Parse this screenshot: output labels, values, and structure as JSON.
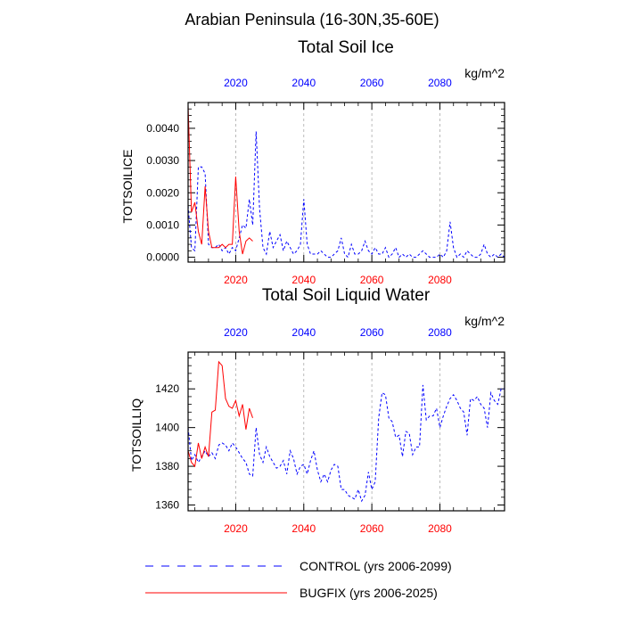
{
  "page": {
    "title": "Arabian Peninsula (16-30N,35-60E)",
    "colors": {
      "control": "#0000ff",
      "bugfix": "#ff0000",
      "grid": "#aaaaaa"
    }
  },
  "legend": {
    "control_label": "CONTROL (yrs 2006-2099)",
    "bugfix_label": "BUGFIX (yrs 2006-2025)"
  },
  "chart_data": [
    {
      "type": "line",
      "title": "Total Soil Ice",
      "units": "kg/m^2",
      "ylabel": "TOTSOILICE",
      "xlim": [
        2006,
        2099
      ],
      "ylim": [
        -0.00015,
        0.0048
      ],
      "yticks": [
        0.0,
        0.001,
        0.002,
        0.003,
        0.004
      ],
      "ytick_labels": [
        "0.0000",
        "0.0010",
        "0.0020",
        "0.0030",
        "0.0040"
      ],
      "xticks": [
        2020,
        2040,
        2060,
        2080
      ],
      "xtick_labels": [
        "2020",
        "2040",
        "2060",
        "2080"
      ],
      "series": [
        {
          "name": "CONTROL",
          "style": "dashed",
          "x": [
            2006,
            2007,
            2008,
            2009,
            2010,
            2011,
            2012,
            2013,
            2014,
            2015,
            2016,
            2017,
            2018,
            2019,
            2020,
            2021,
            2022,
            2023,
            2024,
            2025,
            2026,
            2027,
            2028,
            2029,
            2030,
            2031,
            2032,
            2033,
            2034,
            2035,
            2036,
            2037,
            2038,
            2039,
            2040,
            2041,
            2042,
            2043,
            2044,
            2045,
            2046,
            2047,
            2048,
            2049,
            2050,
            2051,
            2052,
            2053,
            2054,
            2055,
            2056,
            2057,
            2058,
            2059,
            2060,
            2061,
            2062,
            2063,
            2064,
            2065,
            2066,
            2067,
            2068,
            2069,
            2070,
            2071,
            2072,
            2073,
            2074,
            2075,
            2076,
            2077,
            2078,
            2079,
            2080,
            2081,
            2082,
            2083,
            2084,
            2085,
            2086,
            2087,
            2088,
            2089,
            2090,
            2091,
            2092,
            2093,
            2094,
            2095,
            2096,
            2097,
            2098,
            2099
          ],
          "values": [
            0.0016,
            0.0003,
            0.0002,
            0.0028,
            0.0028,
            0.0026,
            0.0004,
            0.0003,
            0.0003,
            0.0004,
            0.0002,
            0.0003,
            0.0001,
            0.0003,
            0.0002,
            0.0006,
            0.001,
            0.0009,
            0.0018,
            0.001,
            0.0039,
            0.0015,
            0.0003,
            0.0001,
            0.0008,
            0.0003,
            0.0005,
            0.0007,
            0.0002,
            0.0005,
            0.0003,
            0.0001,
            0.0002,
            0.0004,
            0.0018,
            0.0004,
            0.0001,
            0.0001,
            0.0001,
            0.0002,
            0.0001,
            0.0,
            0.0,
            0.0001,
            0.0002,
            0.0006,
            0.0001,
            0.0,
            0.0004,
            0.0001,
            0.0001,
            0.0002,
            0.0005,
            0.0002,
            0.0001,
            0.0003,
            0.0001,
            0.0001,
            0.0003,
            0.0,
            0.0001,
            0.0003,
            0.0,
            0.0001,
            0.0,
            0.0001,
            0.0,
            0.0,
            0.0001,
            0.0002,
            0.0001,
            0.0,
            0.0,
            0.0,
            0.0001,
            0.0,
            0.0002,
            0.0011,
            0.0003,
            0.0,
            0.0001,
            0.0,
            0.0002,
            0.0001,
            0.0,
            0.0,
            0.0001,
            0.0004,
            0.0001,
            0.0,
            0.0001,
            0.0,
            0.0001,
            0.0
          ]
        },
        {
          "name": "BUGFIX",
          "style": "solid",
          "x": [
            2006,
            2007,
            2008,
            2009,
            2010,
            2011,
            2012,
            2013,
            2014,
            2015,
            2016,
            2017,
            2018,
            2019,
            2020,
            2021,
            2022,
            2023,
            2024,
            2025
          ],
          "values": [
            0.0047,
            0.0014,
            0.0017,
            0.0008,
            0.0004,
            0.0022,
            0.0008,
            0.0003,
            0.0003,
            0.0003,
            0.0004,
            0.0003,
            0.0004,
            0.0004,
            0.0025,
            0.0008,
            0.0001,
            0.0005,
            0.0006,
            0.0005
          ]
        }
      ]
    },
    {
      "type": "line",
      "title": "Total Soil Liquid Water",
      "units": "kg/m^2",
      "ylabel": "TOTSOILLIQ",
      "xlim": [
        2006,
        2099
      ],
      "ylim": [
        1357,
        1439
      ],
      "yticks": [
        1360,
        1380,
        1400,
        1420
      ],
      "ytick_labels": [
        "1360",
        "1380",
        "1400",
        "1420"
      ],
      "xticks": [
        2020,
        2040,
        2060,
        2080
      ],
      "xtick_labels": [
        "2020",
        "2040",
        "2060",
        "2080"
      ],
      "series": [
        {
          "name": "CONTROL",
          "style": "dashed",
          "x": [
            2006,
            2007,
            2008,
            2009,
            2010,
            2011,
            2012,
            2013,
            2014,
            2015,
            2016,
            2017,
            2018,
            2019,
            2020,
            2021,
            2022,
            2023,
            2024,
            2025,
            2026,
            2027,
            2028,
            2029,
            2030,
            2031,
            2032,
            2033,
            2034,
            2035,
            2036,
            2037,
            2038,
            2039,
            2040,
            2041,
            2042,
            2043,
            2044,
            2045,
            2046,
            2047,
            2048,
            2049,
            2050,
            2051,
            2052,
            2053,
            2054,
            2055,
            2056,
            2057,
            2058,
            2059,
            2060,
            2061,
            2062,
            2063,
            2064,
            2065,
            2066,
            2067,
            2068,
            2069,
            2070,
            2071,
            2072,
            2073,
            2074,
            2075,
            2076,
            2077,
            2078,
            2079,
            2080,
            2081,
            2082,
            2083,
            2084,
            2085,
            2086,
            2087,
            2088,
            2089,
            2090,
            2091,
            2092,
            2093,
            2094,
            2095,
            2096,
            2097,
            2098,
            2099
          ],
          "values": [
            1400,
            1383,
            1386,
            1382,
            1385,
            1388,
            1385,
            1387,
            1384,
            1391,
            1392,
            1391,
            1388,
            1392,
            1390,
            1387,
            1384,
            1382,
            1376,
            1375,
            1400,
            1386,
            1382,
            1390,
            1385,
            1382,
            1379,
            1380,
            1383,
            1376,
            1388,
            1384,
            1376,
            1380,
            1381,
            1376,
            1383,
            1388,
            1378,
            1372,
            1376,
            1372,
            1378,
            1381,
            1380,
            1368,
            1368,
            1365,
            1364,
            1363,
            1368,
            1362,
            1365,
            1377,
            1368,
            1372,
            1405,
            1418,
            1417,
            1405,
            1403,
            1395,
            1396,
            1385,
            1398,
            1397,
            1386,
            1390,
            1390,
            1422,
            1404,
            1406,
            1406,
            1410,
            1400,
            1406,
            1411,
            1415,
            1417,
            1414,
            1410,
            1408,
            1396,
            1415,
            1414,
            1416,
            1412,
            1410,
            1400,
            1418,
            1414,
            1412,
            1420,
            1420
          ]
        },
        {
          "name": "BUGFIX",
          "style": "solid",
          "x": [
            2006,
            2007,
            2008,
            2009,
            2010,
            2011,
            2012,
            2013,
            2014,
            2015,
            2016,
            2017,
            2018,
            2019,
            2020,
            2021,
            2022,
            2023,
            2024,
            2025
          ],
          "values": [
            1388,
            1382,
            1380,
            1392,
            1384,
            1390,
            1385,
            1408,
            1409,
            1434,
            1432,
            1415,
            1411,
            1410,
            1414,
            1406,
            1412,
            1399,
            1410,
            1405
          ]
        }
      ]
    }
  ]
}
